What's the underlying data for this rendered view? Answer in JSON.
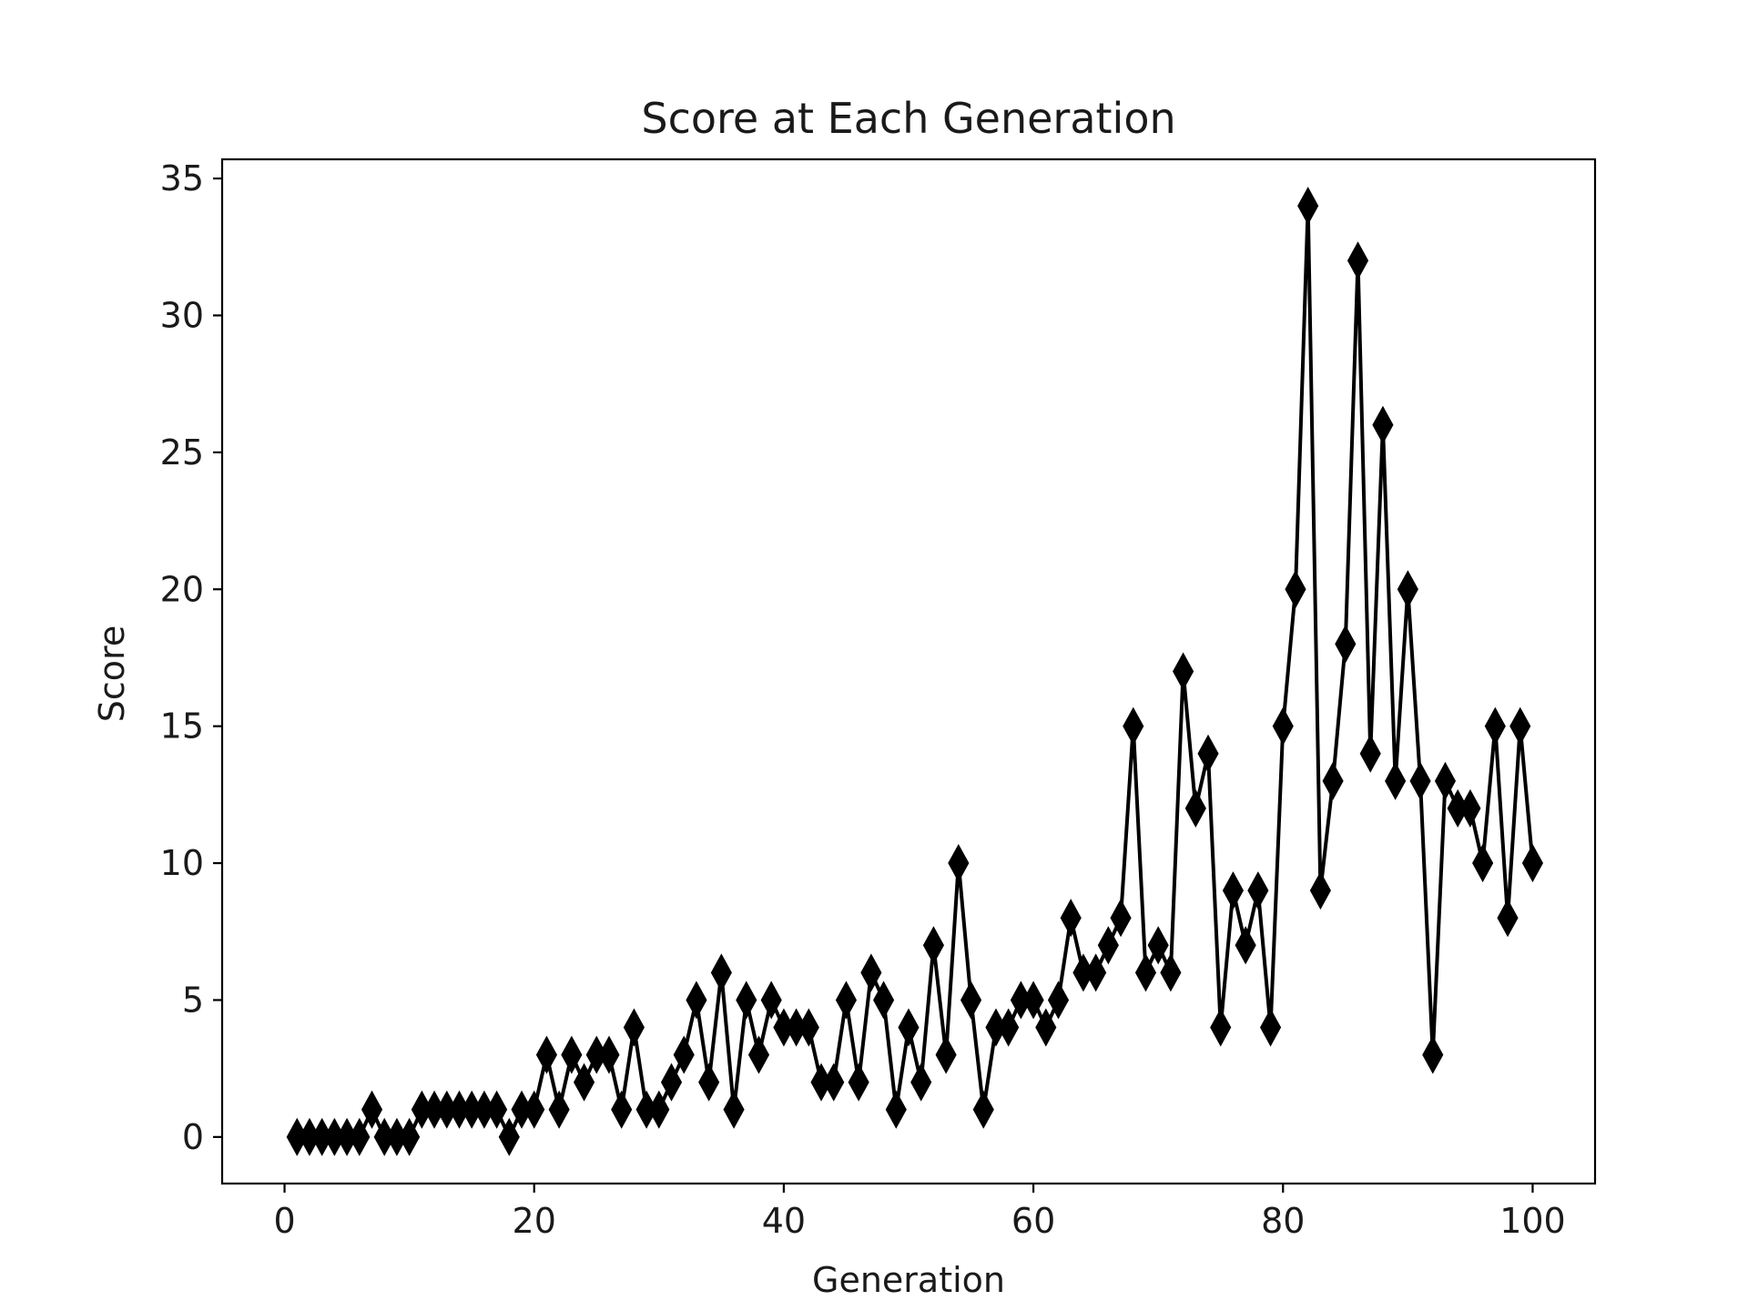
{
  "chart_data": {
    "type": "line",
    "title": "Score at Each Generation",
    "xlabel": "Generation",
    "ylabel": "Score",
    "xlim": [
      -5,
      105
    ],
    "ylim": [
      -1.7,
      35.7
    ],
    "xticks": [
      0,
      20,
      40,
      60,
      80,
      100
    ],
    "yticks": [
      0,
      5,
      10,
      15,
      20,
      25,
      30,
      35
    ],
    "xtick_labels": [
      "0",
      "20",
      "40",
      "60",
      "80",
      "100"
    ],
    "ytick_labels": [
      "0",
      "5",
      "10",
      "15",
      "20",
      "25",
      "30",
      "35"
    ],
    "grid": false,
    "line_color": "#000000",
    "marker": "diamond",
    "series": [
      {
        "x": [
          1,
          2,
          3,
          4,
          5,
          6,
          7,
          8,
          9,
          10,
          11,
          12,
          13,
          14,
          15,
          16,
          17,
          18,
          19,
          20,
          21,
          22,
          23,
          24,
          25,
          26,
          27,
          28,
          29,
          30,
          31,
          32,
          33,
          34,
          35,
          36,
          37,
          38,
          39,
          40,
          41,
          42,
          43,
          44,
          45,
          46,
          47,
          48,
          49,
          50,
          51,
          52,
          53,
          54,
          55,
          56,
          57,
          58,
          59,
          60,
          61,
          62,
          63,
          64,
          65,
          66,
          67,
          68,
          69,
          70,
          71,
          72,
          73,
          74,
          75,
          76,
          77,
          78,
          79,
          80,
          81,
          82,
          83,
          84,
          85,
          86,
          87,
          88,
          89,
          90,
          91,
          92,
          93,
          94,
          95,
          96,
          97,
          98,
          99,
          100
        ],
        "values": [
          0,
          0,
          0,
          0,
          0,
          0,
          1,
          0,
          0,
          0,
          1,
          1,
          1,
          1,
          1,
          1,
          1,
          0,
          1,
          1,
          3,
          1,
          3,
          2,
          3,
          3,
          1,
          4,
          1,
          1,
          2,
          3,
          5,
          2,
          6,
          1,
          5,
          3,
          5,
          4,
          4,
          4,
          2,
          2,
          5,
          2,
          6,
          5,
          1,
          4,
          2,
          7,
          3,
          10,
          5,
          1,
          4,
          4,
          5,
          5,
          4,
          5,
          8,
          6,
          6,
          7,
          8,
          15,
          6,
          7,
          6,
          17,
          12,
          14,
          4,
          9,
          7,
          9,
          4,
          15,
          20,
          34,
          9,
          13,
          18,
          32,
          14,
          26,
          13,
          20,
          13,
          3,
          13,
          12,
          12,
          10,
          15,
          8,
          15,
          10
        ]
      }
    ]
  }
}
